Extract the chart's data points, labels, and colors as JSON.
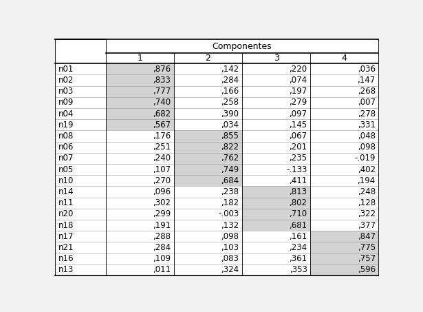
{
  "title": "Componentes",
  "col_headers": [
    "1",
    "2",
    "3",
    "4"
  ],
  "row_labels": [
    "n01",
    "n02",
    "n03",
    "n09",
    "n04",
    "n19",
    "n08",
    "n06",
    "n07",
    "n05",
    "n10",
    "n14",
    "n11",
    "n20",
    "n18",
    "n17",
    "n21",
    "n16",
    "n13"
  ],
  "values": [
    [
      ",876",
      ",142",
      ",220",
      ",036"
    ],
    [
      ",833",
      ",284",
      ",074",
      ",147"
    ],
    [
      ",777",
      ",166",
      ",197",
      ",268"
    ],
    [
      ",740",
      ",258",
      ",279",
      ",007"
    ],
    [
      ",682",
      ",390",
      ",097",
      ",278"
    ],
    [
      ",567",
      ",034",
      ",145",
      ",331"
    ],
    [
      ",176",
      ",855",
      ",067",
      ",048"
    ],
    [
      ",251",
      ",822",
      ",201",
      ",098"
    ],
    [
      ",240",
      ",762",
      ",235",
      "-.019"
    ],
    [
      ",107",
      ",749",
      "-.133",
      ",402"
    ],
    [
      ",270",
      ",684",
      ",411",
      ",194"
    ],
    [
      ",096",
      ",238",
      ",813",
      ",248"
    ],
    [
      ",302",
      ",182",
      ",802",
      ",128"
    ],
    [
      ",299",
      "-.003",
      ",710",
      ",322"
    ],
    [
      ",191",
      ",132",
      ",681",
      ",377"
    ],
    [
      ",288",
      ",098",
      ",161",
      ",847"
    ],
    [
      ",284",
      ",103",
      ",234",
      ",775"
    ],
    [
      ",109",
      ",083",
      ",361",
      ",757"
    ],
    [
      ",011",
      ",324",
      ",353",
      ",596"
    ]
  ],
  "highlight_ranges": {
    "0": [
      0,
      5
    ],
    "1": [
      6,
      10
    ],
    "2": [
      11,
      14
    ],
    "3": [
      15,
      18
    ]
  },
  "highlight_color": "#d3d3d3",
  "bg_color": "#f2f2f2",
  "white": "#ffffff",
  "text_color": "#000000",
  "font_size": 8.5,
  "header_font_size": 9.0,
  "lw_thick": 1.2,
  "lw_thin": 0.6
}
